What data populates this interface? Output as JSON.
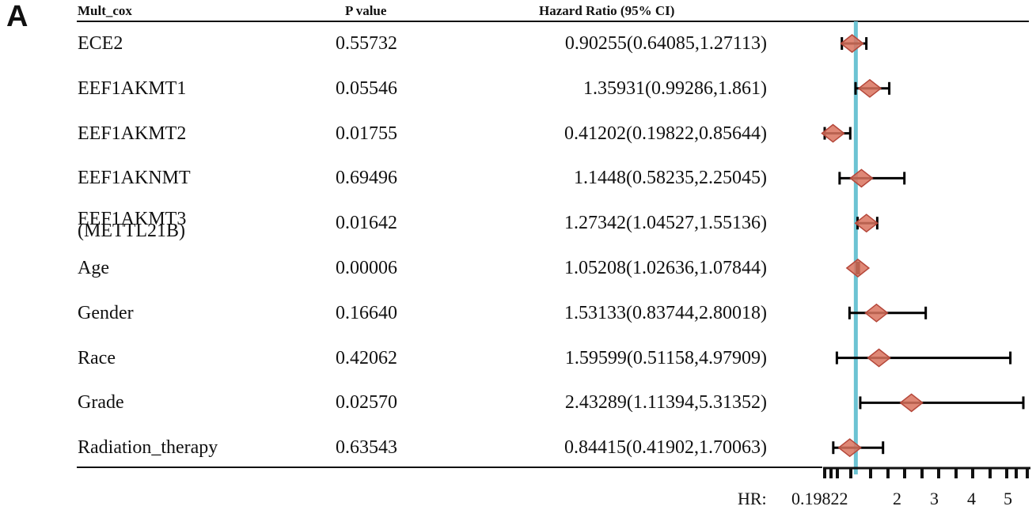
{
  "panel_label": "A",
  "headers": {
    "name": "Mult_cox",
    "p": "P value",
    "hr": "Hazard Ratio (95% CI)"
  },
  "axis": {
    "prefix": "HR:",
    "ticks_text": [
      "0.19822",
      "2",
      "3",
      "4",
      "5"
    ]
  },
  "colors": {
    "reference_line": "#6cc3d3",
    "marker_fill": "#d9735e",
    "marker_edge": "#b5473a",
    "whisker": "#000000"
  },
  "chart_data": {
    "type": "forest",
    "reference_line": 1,
    "xlim": [
      0.19822,
      5.31352
    ],
    "rows": [
      {
        "name": "ECE2",
        "p": "0.55732",
        "hr_text": "0.90255(0.64085,1.27113)",
        "hr": 0.90255,
        "lo": 0.64085,
        "hi": 1.27113
      },
      {
        "name": "EEF1AKMT1",
        "p": "0.05546",
        "hr_text": "1.35931(0.99286,1.861)",
        "hr": 1.35931,
        "lo": 0.99286,
        "hi": 1.861
      },
      {
        "name": "EEF1AKMT2",
        "p": "0.01755",
        "hr_text": "0.41202(0.19822,0.85644)",
        "hr": 0.41202,
        "lo": 0.19822,
        "hi": 0.85644
      },
      {
        "name": "EEF1AKNMT",
        "p": "0.69496",
        "hr_text": "1.1448(0.58235,2.25045)",
        "hr": 1.1448,
        "lo": 0.58235,
        "hi": 2.25045
      },
      {
        "name": "EEF1AKMT3",
        "name_line2": "(METTL21B)",
        "p": "0.01642",
        "hr_text": "1.27342(1.04527,1.55136)",
        "hr": 1.27342,
        "lo": 1.04527,
        "hi": 1.55136
      },
      {
        "name": "Age",
        "p": "0.00006",
        "hr_text": "1.05208(1.02636,1.07844)",
        "hr": 1.05208,
        "lo": 1.02636,
        "hi": 1.07844
      },
      {
        "name": "Gender",
        "p": "0.16640",
        "hr_text": "1.53133(0.83744,2.80018)",
        "hr": 1.53133,
        "lo": 0.83744,
        "hi": 2.80018
      },
      {
        "name": "Race",
        "p": "0.42062",
        "hr_text": "1.59599(0.51158,4.97909)",
        "hr": 1.59599,
        "lo": 0.51158,
        "hi": 4.97909
      },
      {
        "name": "Grade",
        "p": "0.02570",
        "hr_text": "2.43289(1.11394,5.31352)",
        "hr": 2.43289,
        "lo": 1.11394,
        "hi": 5.31352
      },
      {
        "name": "Radiation_therapy",
        "p": "0.63543",
        "hr_text": "0.84415(0.41902,1.70063)",
        "hr": 0.84415,
        "lo": 0.41902,
        "hi": 1.70063
      }
    ]
  }
}
